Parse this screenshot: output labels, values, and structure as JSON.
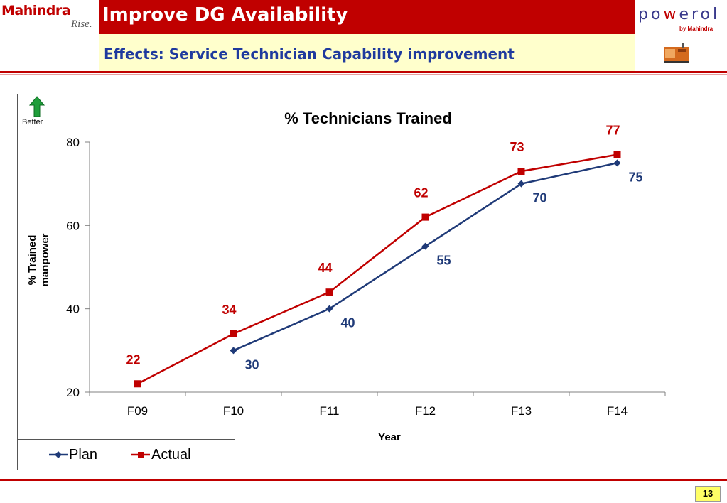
{
  "header": {
    "brand": "Mahindra",
    "brand_tag": "Rise.",
    "title": "Improve DG Availability",
    "subtitle": "Effects: Service Technician Capability improvement",
    "partner_logo": "powerol",
    "partner_by": "by Mahindra"
  },
  "badge": {
    "label": "Better",
    "icon": "up-arrow-icon"
  },
  "colors": {
    "plan": "#1f3a78",
    "actual": "#c00000",
    "header": "#c00000",
    "subtitle_bg": "#ffffcc"
  },
  "chart_data": {
    "type": "line",
    "title": "%  Technicians Trained",
    "xlabel": "Year",
    "ylabel": "% Trained manpower",
    "categories": [
      "F09",
      "F10",
      "F11",
      "F12",
      "F13",
      "F14"
    ],
    "ylim": [
      20,
      80
    ],
    "yticks": [
      20,
      40,
      60,
      80
    ],
    "grid": false,
    "legend_position": "bottom-left",
    "series": [
      {
        "name": "Plan",
        "values": [
          null,
          30,
          40,
          55,
          70,
          75
        ],
        "color": "#1f3a78",
        "marker": "diamond"
      },
      {
        "name": "Actual",
        "values": [
          22,
          34,
          44,
          62,
          73,
          77
        ],
        "color": "#c00000",
        "marker": "square"
      }
    ]
  },
  "footer": {
    "page_number": "13"
  }
}
